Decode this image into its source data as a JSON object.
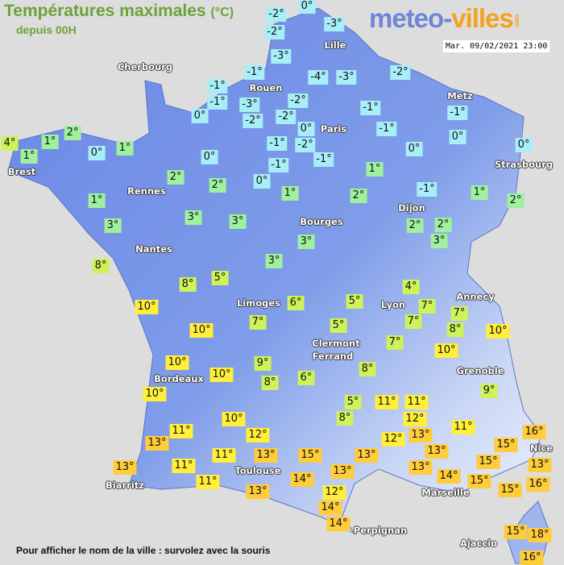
{
  "header": {
    "title": "Températures maximales",
    "unit": "(°C)",
    "subtitle": "depuis 00H"
  },
  "logo": {
    "part1": "meteo-",
    "part2": "villes",
    "part3": ".com"
  },
  "timestamp": "Mar. 09/02/2021 23:00",
  "footer": "Pour afficher le nom de la ville : survolez avec la souris",
  "colors": {
    "cold": "#a8eef8",
    "cool": "#9ff09f",
    "mild": "#cdf25a",
    "warm": "#ffee3a",
    "hot": "#ffcc3a",
    "land": "#6f8fe8",
    "sea": "#dedddd"
  },
  "cities": [
    "Cherbourg",
    "Lille",
    "Rouen",
    "Paris",
    "Metz",
    "Strasbourg",
    "Brest",
    "Rennes",
    "Nantes",
    "Bourges",
    "Dijon",
    "Limoges",
    "Clermont",
    "Ferrand",
    "Lyon",
    "Annecy",
    "Grenoble",
    "Bordeaux",
    "Toulouse",
    "Biarritz",
    "Perpignan",
    "Marseille",
    "Nice",
    "Ajaccio"
  ],
  "temperatures": [
    "-2°",
    "0°",
    "-2°",
    "-3°",
    "-3°",
    "-1°",
    "-1°",
    "-1°",
    "-3°",
    "-2°",
    "0°",
    "-2°",
    "-2°",
    "-4°",
    "-3°",
    "-2°",
    "-1°",
    "-1°",
    "0°",
    "-1°",
    "-2°",
    "-1°",
    "-1°",
    "0°",
    "0°",
    "-1°",
    "0°",
    "0°",
    "1°",
    "-1°",
    "1°",
    "2°",
    "1°",
    "2°",
    "2°",
    "2°",
    "3°",
    "3°",
    "3°",
    "2°",
    "4°",
    "1°",
    "1°",
    "0°",
    "1°",
    "0°",
    "2°",
    "2°",
    "1°",
    "3°",
    "3°",
    "3°",
    "8°",
    "8°",
    "5°",
    "10°",
    "6°",
    "7°",
    "10°",
    "5°",
    "5°",
    "4°",
    "7°",
    "7°",
    "7°",
    "8°",
    "10°",
    "7°",
    "10°",
    "10°",
    "10°",
    "9°",
    "8°",
    "6°",
    "8°",
    "10°",
    "9°",
    "5°",
    "8°",
    "11°",
    "11°",
    "12°",
    "11°",
    "10°",
    "12°",
    "11°",
    "13°",
    "12°",
    "13°",
    "13°",
    "13°",
    "14°",
    "16°",
    "15°",
    "13°",
    "15°",
    "15°",
    "16°",
    "15°",
    "13°",
    "11°",
    "11°",
    "13°",
    "15°",
    "13°",
    "11°",
    "14°",
    "13°",
    "13°",
    "12°",
    "14°",
    "14°",
    "15°",
    "18°",
    "16°"
  ]
}
